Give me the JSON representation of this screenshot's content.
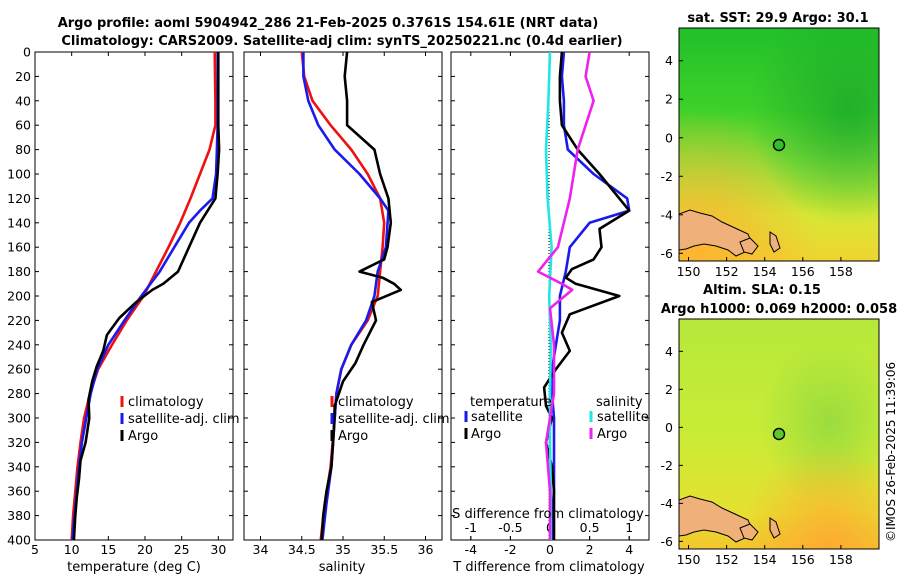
{
  "title": {
    "line1": "Argo profile: aoml 5904942_286 21-Feb-2025 0.3761S 154.61E (NRT data)",
    "line2": "Climatology: CARS2009. Satellite-adj clim: synTS_20250221.nc (0.4d earlier)"
  },
  "copyright": "©IMOS 26-Feb-2025 11:39:06",
  "colors": {
    "climatology": "#ee1111",
    "satellite": "#1a1aee",
    "argo": "#000000",
    "salinity_sat": "#22e5e5",
    "salinity_argo": "#ee22ee",
    "land": "#f0b07a"
  },
  "chart_data": [
    {
      "type": "line",
      "panel": "temperature",
      "xlabel": "temperature (deg C)",
      "xlim": [
        5,
        32
      ],
      "xticks": [
        "5",
        "10",
        "15",
        "20",
        "25",
        "30"
      ],
      "ylim": [
        0,
        400
      ],
      "yticks": [
        "0",
        "20",
        "40",
        "60",
        "80",
        "100",
        "120",
        "140",
        "160",
        "180",
        "200",
        "220",
        "240",
        "260",
        "280",
        "300",
        "320",
        "340",
        "360",
        "380",
        "400"
      ],
      "legend": [
        "climatology",
        "satellite-adj. clim",
        "Argo"
      ],
      "series": [
        {
          "name": "climatology",
          "color": "#ee1111",
          "points": [
            [
              29.5,
              0
            ],
            [
              29.6,
              40
            ],
            [
              29.6,
              60
            ],
            [
              28.8,
              80
            ],
            [
              27.5,
              100
            ],
            [
              26.2,
              120
            ],
            [
              24.8,
              140
            ],
            [
              23.2,
              160
            ],
            [
              21.5,
              180
            ],
            [
              19.8,
              200
            ],
            [
              17.5,
              220
            ],
            [
              15.5,
              240
            ],
            [
              13.6,
              260
            ],
            [
              12.5,
              280
            ],
            [
              11.7,
              300
            ],
            [
              11.2,
              320
            ],
            [
              10.8,
              340
            ],
            [
              10.5,
              360
            ],
            [
              10.2,
              380
            ],
            [
              10.0,
              400
            ]
          ]
        },
        {
          "name": "satellite-adj. clim",
          "color": "#1a1aee",
          "points": [
            [
              29.9,
              0
            ],
            [
              29.9,
              60
            ],
            [
              29.8,
              80
            ],
            [
              29.7,
              100
            ],
            [
              29.2,
              120
            ],
            [
              27.5,
              130
            ],
            [
              26.0,
              140
            ],
            [
              24.0,
              160
            ],
            [
              22.0,
              180
            ],
            [
              19.5,
              200
            ],
            [
              17.2,
              220
            ],
            [
              15.0,
              240
            ],
            [
              13.5,
              260
            ],
            [
              12.6,
              280
            ],
            [
              12.0,
              300
            ],
            [
              11.4,
              320
            ],
            [
              11.0,
              340
            ],
            [
              10.7,
              360
            ],
            [
              10.4,
              380
            ],
            [
              10.1,
              400
            ]
          ]
        },
        {
          "name": "Argo",
          "color": "#000000",
          "points": [
            [
              30.0,
              0
            ],
            [
              30.0,
              60
            ],
            [
              30.1,
              80
            ],
            [
              29.9,
              100
            ],
            [
              29.6,
              120
            ],
            [
              27.5,
              140
            ],
            [
              26.0,
              160
            ],
            [
              24.5,
              180
            ],
            [
              22.5,
              190
            ],
            [
              21.0,
              195
            ],
            [
              18.8,
              205
            ],
            [
              16.5,
              218
            ],
            [
              14.8,
              232
            ],
            [
              14.3,
              245
            ],
            [
              13.4,
              258
            ],
            [
              12.8,
              270
            ],
            [
              12.3,
              285
            ],
            [
              12.4,
              300
            ],
            [
              11.9,
              320
            ],
            [
              11.2,
              335
            ],
            [
              11.0,
              350
            ],
            [
              10.7,
              365
            ],
            [
              10.5,
              380
            ],
            [
              10.3,
              400
            ]
          ]
        }
      ]
    },
    {
      "type": "line",
      "panel": "salinity",
      "xlabel": "salinity",
      "xlim": [
        33.8,
        36.2
      ],
      "xticks": [
        "34",
        "34.5",
        "35",
        "35.5",
        "36"
      ],
      "ylim": [
        0,
        400
      ],
      "legend": [
        "climatology",
        "satellite-adj. clim",
        "Argo"
      ],
      "series": [
        {
          "name": "climatology",
          "color": "#ee1111",
          "points": [
            [
              34.5,
              0
            ],
            [
              34.53,
              20
            ],
            [
              34.63,
              40
            ],
            [
              34.85,
              60
            ],
            [
              35.1,
              80
            ],
            [
              35.3,
              100
            ],
            [
              35.45,
              120
            ],
            [
              35.5,
              140
            ],
            [
              35.48,
              160
            ],
            [
              35.45,
              180
            ],
            [
              35.42,
              200
            ],
            [
              35.3,
              220
            ],
            [
              35.1,
              240
            ],
            [
              34.98,
              260
            ],
            [
              34.92,
              280
            ],
            [
              34.9,
              300
            ],
            [
              34.85,
              340
            ],
            [
              34.78,
              370
            ],
            [
              34.73,
              400
            ]
          ]
        },
        {
          "name": "satellite-adj. clim",
          "color": "#1a1aee",
          "points": [
            [
              34.52,
              0
            ],
            [
              34.52,
              20
            ],
            [
              34.58,
              40
            ],
            [
              34.7,
              60
            ],
            [
              34.9,
              80
            ],
            [
              35.2,
              100
            ],
            [
              35.45,
              120
            ],
            [
              35.55,
              130
            ],
            [
              35.52,
              160
            ],
            [
              35.42,
              180
            ],
            [
              35.38,
              200
            ],
            [
              35.28,
              220
            ],
            [
              35.1,
              240
            ],
            [
              34.98,
              260
            ],
            [
              34.92,
              280
            ],
            [
              34.9,
              300
            ],
            [
              34.86,
              340
            ],
            [
              34.8,
              370
            ],
            [
              34.75,
              400
            ]
          ]
        },
        {
          "name": "Argo",
          "color": "#000000",
          "points": [
            [
              35.05,
              0
            ],
            [
              35.02,
              20
            ],
            [
              35.05,
              40
            ],
            [
              35.05,
              60
            ],
            [
              35.38,
              80
            ],
            [
              35.45,
              100
            ],
            [
              35.55,
              120
            ],
            [
              35.58,
              140
            ],
            [
              35.54,
              160
            ],
            [
              35.5,
              170
            ],
            [
              35.2,
              180
            ],
            [
              35.48,
              185
            ],
            [
              35.62,
              190
            ],
            [
              35.7,
              195
            ],
            [
              35.35,
              205
            ],
            [
              35.4,
              220
            ],
            [
              35.25,
              240
            ],
            [
              35.15,
              255
            ],
            [
              35.0,
              270
            ],
            [
              34.9,
              290
            ],
            [
              34.89,
              310
            ],
            [
              34.86,
              340
            ],
            [
              34.8,
              360
            ],
            [
              34.76,
              380
            ],
            [
              34.74,
              400
            ]
          ]
        }
      ]
    },
    {
      "type": "line",
      "panel": "difference",
      "xlabel": "T difference from climatology",
      "xlim": [
        -5,
        5
      ],
      "xticks": [
        "-4",
        "-2",
        "0",
        "2",
        "4"
      ],
      "top_xlabel": "S difference from climatology",
      "top_xlim": [
        -1.25,
        1.25
      ],
      "top_xticks": [
        "-1",
        "-0.5",
        "0",
        "0.5",
        "1"
      ],
      "ylim": [
        0,
        400
      ],
      "legend_temperature": [
        "temperature",
        "satellite",
        "Argo"
      ],
      "legend_salinity": [
        "salinity",
        "satellite",
        "Argo"
      ],
      "series": [
        {
          "name": "T satellite",
          "color": "#1a1aee",
          "points": [
            [
              0.7,
              0
            ],
            [
              0.6,
              20
            ],
            [
              0.7,
              40
            ],
            [
              0.7,
              60
            ],
            [
              0.9,
              80
            ],
            [
              2.2,
              100
            ],
            [
              3.9,
              120
            ],
            [
              4.0,
              130
            ],
            [
              2.0,
              140
            ],
            [
              1.0,
              160
            ],
            [
              0.8,
              180
            ],
            [
              0.5,
              200
            ],
            [
              0.5,
              220
            ],
            [
              0.3,
              240
            ],
            [
              0.1,
              260
            ],
            [
              0.1,
              280
            ],
            [
              0.2,
              300
            ],
            [
              0.2,
              320
            ],
            [
              0.2,
              340
            ],
            [
              0.2,
              360
            ],
            [
              0.1,
              380
            ],
            [
              0.1,
              400
            ]
          ]
        },
        {
          "name": "T Argo",
          "color": "#000000",
          "points": [
            [
              0.6,
              0
            ],
            [
              0.5,
              20
            ],
            [
              0.5,
              40
            ],
            [
              0.6,
              60
            ],
            [
              1.4,
              80
            ],
            [
              2.5,
              100
            ],
            [
              3.5,
              120
            ],
            [
              4.0,
              130
            ],
            [
              2.5,
              145
            ],
            [
              2.6,
              160
            ],
            [
              2.2,
              170
            ],
            [
              1.1,
              178
            ],
            [
              0.8,
              185
            ],
            [
              1.3,
              190
            ],
            [
              3.5,
              200
            ],
            [
              1.0,
              215
            ],
            [
              0.6,
              230
            ],
            [
              1.0,
              245
            ],
            [
              0.3,
              260
            ],
            [
              -0.3,
              275
            ],
            [
              -0.2,
              290
            ],
            [
              0.1,
              300
            ],
            [
              -0.2,
              320
            ],
            [
              0.1,
              340
            ],
            [
              0.2,
              360
            ],
            [
              0.2,
              380
            ],
            [
              0.2,
              400
            ]
          ]
        },
        {
          "name": "S satellite",
          "color": "#22e5e5",
          "points": [
            [
              0.0,
              0
            ],
            [
              -0.02,
              40
            ],
            [
              -0.05,
              80
            ],
            [
              -0.03,
              120
            ],
            [
              0.02,
              160
            ],
            [
              -0.01,
              200
            ],
            [
              0.01,
              240
            ],
            [
              0.0,
              280
            ],
            [
              0.0,
              320
            ],
            [
              0.01,
              360
            ],
            [
              0.01,
              400
            ]
          ]
        },
        {
          "name": "S Argo",
          "color": "#ee22ee",
          "points": [
            [
              0.5,
              0
            ],
            [
              0.45,
              20
            ],
            [
              0.55,
              40
            ],
            [
              0.35,
              80
            ],
            [
              0.25,
              120
            ],
            [
              0.1,
              160
            ],
            [
              -0.15,
              180
            ],
            [
              0.15,
              190
            ],
            [
              0.28,
              195
            ],
            [
              0.0,
              210
            ],
            [
              0.05,
              240
            ],
            [
              0.05,
              280
            ],
            [
              -0.05,
              320
            ],
            [
              0.0,
              360
            ],
            [
              0.0,
              400
            ]
          ]
        }
      ]
    },
    {
      "type": "heatmap",
      "panel": "sst-map",
      "title": "sat. SST: 29.9 Argo: 30.1",
      "xticks": [
        "150",
        "152",
        "154",
        "156",
        "158"
      ],
      "yticks": [
        "4",
        "2",
        "0",
        "-2",
        "-4",
        "-6"
      ],
      "xlim": [
        149.5,
        160
      ],
      "ylim": [
        -6.4,
        5.7
      ],
      "argo_position": {
        "lon": 154.61,
        "lat": -0.3761
      }
    },
    {
      "type": "heatmap",
      "panel": "sla-map",
      "title_line1": "Altim. SLA: 0.15",
      "title_line2": "Argo h1000: 0.069 h2000: 0.058",
      "xticks": [
        "150",
        "152",
        "154",
        "156",
        "158"
      ],
      "yticks": [
        "4",
        "2",
        "0",
        "-2",
        "-4",
        "-6"
      ],
      "xlim": [
        149.5,
        160
      ],
      "ylim": [
        -6.4,
        5.7
      ],
      "argo_position": {
        "lon": 154.61,
        "lat": -0.3761
      }
    }
  ]
}
